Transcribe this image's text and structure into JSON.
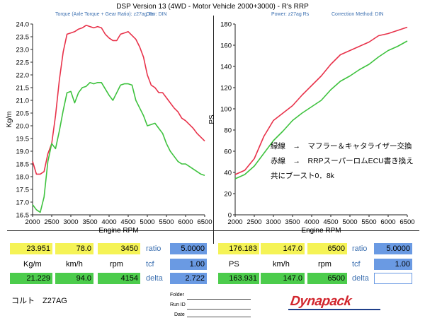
{
  "header": {
    "title": "DSP Version 13 (4WD - Motor Vehicle 2000+3000) - R's  RRP",
    "left_sub1": "Torque (Axle Torque + Gear Ratio): z27ag Rs",
    "left_sub2": "Corr: DIN",
    "right_sub1": "Power: z27ag Rs",
    "right_sub2": "Correction Method: DIN"
  },
  "annotation": {
    "line1": "緑線　→　マフラー＆キャタライザー交換",
    "line2": "赤線　→　RRPスーパーロムECU書き換え",
    "line3": "共にブースト0．8k"
  },
  "chart_data": [
    {
      "type": "line",
      "xlabel": "Engine RPM",
      "ylabel": "Kg/m",
      "xlim": [
        2000,
        6500
      ],
      "ylim": [
        16.5,
        24.0
      ],
      "xticks": [
        "2000",
        "2500",
        "3000",
        "3500",
        "4000",
        "4500",
        "5000",
        "5500",
        "6000",
        "6500"
      ],
      "yticks": [
        "16.5",
        "17.0",
        "17.5",
        "18.0",
        "18.5",
        "19.0",
        "19.5",
        "20.0",
        "20.5",
        "21.0",
        "21.5",
        "22.0",
        "22.5",
        "23.0",
        "23.5",
        "24.0"
      ],
      "grid": false,
      "series": [
        {
          "color": "#e8324a",
          "x": [
            2000,
            2100,
            2200,
            2300,
            2400,
            2500,
            2600,
            2700,
            2800,
            2900,
            3000,
            3100,
            3200,
            3300,
            3400,
            3500,
            3600,
            3700,
            3800,
            3900,
            4000,
            4100,
            4200,
            4300,
            4400,
            4500,
            4600,
            4700,
            4800,
            4900,
            5000,
            5100,
            5200,
            5300,
            5400,
            5500,
            5600,
            5700,
            5800,
            5900,
            6000,
            6100,
            6200,
            6300,
            6400,
            6500
          ],
          "y": [
            18.6,
            18.1,
            18.1,
            18.2,
            18.9,
            19.3,
            20.4,
            21.8,
            22.9,
            23.6,
            23.65,
            23.7,
            23.8,
            23.85,
            23.95,
            23.9,
            23.85,
            23.9,
            23.85,
            23.6,
            23.45,
            23.35,
            23.35,
            23.6,
            23.65,
            23.7,
            23.55,
            23.4,
            23.1,
            22.7,
            22.0,
            21.6,
            21.5,
            21.3,
            21.3,
            21.1,
            20.9,
            20.7,
            20.55,
            20.3,
            20.2,
            20.05,
            19.9,
            19.7,
            19.55,
            19.4
          ]
        },
        {
          "color": "#3ec23e",
          "x": [
            2000,
            2100,
            2200,
            2300,
            2400,
            2500,
            2600,
            2700,
            2800,
            2900,
            3000,
            3100,
            3200,
            3300,
            3400,
            3500,
            3600,
            3700,
            3800,
            3900,
            4000,
            4100,
            4200,
            4300,
            4400,
            4500,
            4600,
            4700,
            4800,
            4900,
            5000,
            5100,
            5200,
            5300,
            5400,
            5500,
            5600,
            5700,
            5800,
            5900,
            6000,
            6100,
            6200,
            6300,
            6400,
            6500
          ],
          "y": [
            16.9,
            16.7,
            16.6,
            17.2,
            18.6,
            19.3,
            19.1,
            19.8,
            20.6,
            21.3,
            21.35,
            20.9,
            21.3,
            21.5,
            21.55,
            21.7,
            21.65,
            21.7,
            21.7,
            21.45,
            21.2,
            21.0,
            21.3,
            21.6,
            21.65,
            21.65,
            21.6,
            21.0,
            20.7,
            20.4,
            20.0,
            20.05,
            20.1,
            19.9,
            19.7,
            19.3,
            19.0,
            18.8,
            18.6,
            18.5,
            18.5,
            18.4,
            18.3,
            18.2,
            18.1,
            18.05
          ]
        }
      ]
    },
    {
      "type": "line",
      "xlabel": "Engine RPM",
      "ylabel": "PS",
      "xlim": [
        2000,
        6500
      ],
      "ylim": [
        0,
        180
      ],
      "xticks": [
        "2000",
        "2500",
        "3000",
        "3500",
        "4000",
        "4500",
        "5000",
        "5500",
        "6000",
        "6500"
      ],
      "yticks": [
        "0",
        "20",
        "40",
        "60",
        "80",
        "100",
        "120",
        "140",
        "160",
        "180"
      ],
      "grid": false,
      "series": [
        {
          "color": "#e8324a",
          "x": [
            2000,
            2250,
            2500,
            2750,
            3000,
            3250,
            3500,
            3750,
            4000,
            4250,
            4500,
            4750,
            5000,
            5250,
            5500,
            5750,
            6000,
            6250,
            6500
          ],
          "y": [
            38,
            42,
            53,
            74,
            89,
            96,
            103,
            113,
            122,
            131,
            142,
            151,
            155,
            159,
            163,
            169,
            171,
            174,
            177
          ]
        },
        {
          "color": "#3ec23e",
          "x": [
            2000,
            2250,
            2500,
            2750,
            3000,
            3250,
            3500,
            3750,
            4000,
            4250,
            4500,
            4750,
            5000,
            5250,
            5500,
            5750,
            6000,
            6250,
            6500
          ],
          "y": [
            34,
            38,
            46,
            58,
            70,
            79,
            89,
            96,
            102,
            108,
            118,
            126,
            131,
            137,
            142,
            149,
            155,
            159,
            164
          ]
        }
      ]
    }
  ],
  "table": {
    "left": {
      "row1": {
        "torque": "23.951",
        "kmh": "78.0",
        "rpm": "3450",
        "ratio_label": "ratio",
        "ratio_value": "5.0000"
      },
      "row2": {
        "torque_unit": "Kg/m",
        "kmh_unit": "km/h",
        "rpm_unit": "rpm",
        "tcf_label": "tcf",
        "tcf_value": "1.00"
      },
      "row3": {
        "torque": "21.229",
        "kmh": "94.0",
        "rpm": "4154",
        "delta_label": "delta",
        "delta_value": "2.722"
      }
    },
    "right": {
      "row1": {
        "power": "176.183",
        "kmh": "147.0",
        "rpm": "6500",
        "ratio_label": "ratio",
        "ratio_value": "5.0000"
      },
      "row2": {
        "power_unit": "PS",
        "kmh_unit": "km/h",
        "rpm_unit": "rpm",
        "tcf_label": "tcf",
        "tcf_value": "1.00"
      },
      "row3": {
        "power": "163.931",
        "kmh": "147.0",
        "rpm": "6500",
        "delta_label": "delta",
        "delta_value": ""
      }
    }
  },
  "footer": {
    "vehicle": "コルト　Z27AG",
    "folder_label": "Folder",
    "runid_label": "Run ID",
    "date_label": "Date",
    "brand": "Dynapack"
  }
}
